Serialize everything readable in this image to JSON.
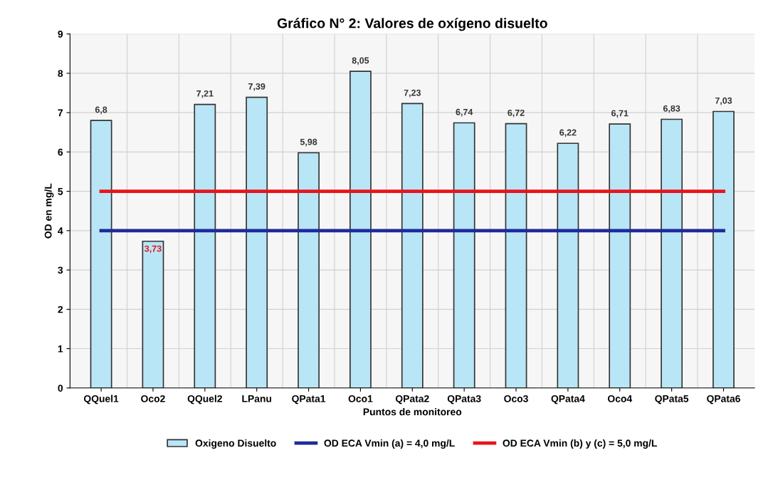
{
  "chart_data": {
    "type": "bar",
    "title": "Gráfico N° 2: Valores de oxígeno disuelto",
    "xlabel": "Puntos de monitoreo",
    "ylabel": "OD en mg/L",
    "categories": [
      "QQuel1",
      "Oco2",
      "QQuel2",
      "LPanu",
      "QPata1",
      "Oco1",
      "QPata2",
      "QPata3",
      "Oco3",
      "QPata4",
      "Oco4",
      "QPata5",
      "QPata6"
    ],
    "series": [
      {
        "name": "Oxigeno Disuelto",
        "color": "#b9e6f6",
        "values": [
          6.8,
          3.73,
          7.21,
          7.39,
          5.98,
          8.05,
          7.23,
          6.74,
          6.72,
          6.22,
          6.71,
          6.83,
          7.03
        ],
        "value_labels": [
          "6,8",
          "3,73",
          "7,21",
          "7,39",
          "5,98",
          "8,05",
          "7,23",
          "6,74",
          "6,72",
          "6,22",
          "6,71",
          "6,83",
          "7,03"
        ]
      },
      {
        "name": "OD ECA Vmin (a) = 4,0 mg/L",
        "type": "line",
        "color": "#1f2a9a",
        "values": [
          4,
          4,
          4,
          4,
          4,
          4,
          4,
          4,
          4,
          4,
          4,
          4,
          4
        ]
      },
      {
        "name": "OD ECA Vmin (b) y (c) = 5,0 mg/L",
        "type": "line",
        "color": "#e8141c",
        "values": [
          5,
          5,
          5,
          5,
          5,
          5,
          5,
          5,
          5,
          5,
          5,
          5,
          5
        ]
      }
    ],
    "ylim": [
      0,
      9
    ],
    "yticks": [
      0,
      1,
      2,
      3,
      4,
      5,
      6,
      7,
      8,
      9
    ],
    "grid": true,
    "legend": "bottom",
    "marker": "none",
    "line_style": "solid"
  }
}
